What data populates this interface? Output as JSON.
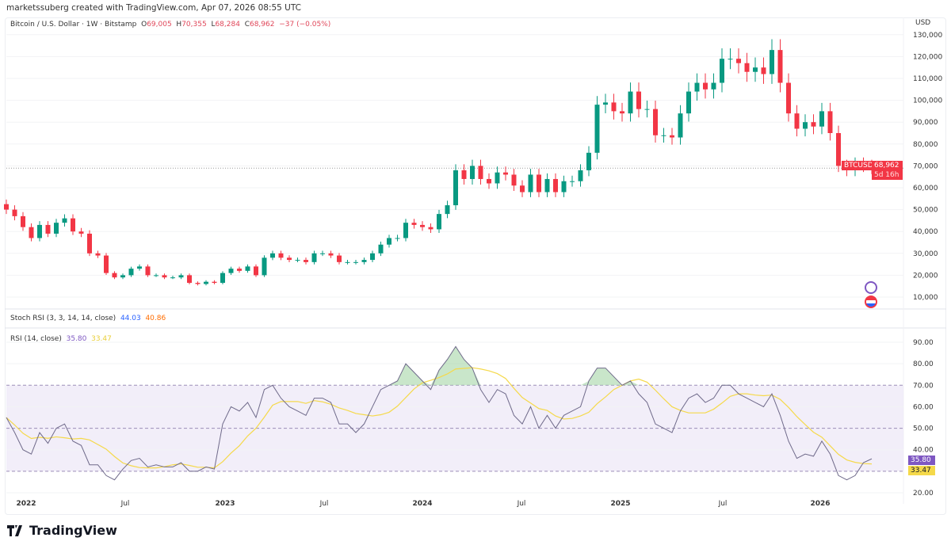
{
  "creator": "marketssuberg created with TradingView.com, Apr 07, 2026 08:55 UTC",
  "legend": {
    "symbol": "Bitcoin / U.S. Dollar · 1W · Bitstamp",
    "o_label": "O",
    "o": "69,005",
    "h_label": "H",
    "h": "70,355",
    "l_label": "L",
    "l": "68,284",
    "c_label": "C",
    "c": "68,962",
    "change": "−37 (−0.05%)"
  },
  "currency": "USD",
  "price_axis": [
    "130,000",
    "120,000",
    "110,000",
    "100,000",
    "90,000",
    "80,000",
    "70,000",
    "60,000",
    "50,000",
    "40,000",
    "30,000",
    "20,000",
    "10,000"
  ],
  "last_price": {
    "symbol": "BTCUSD",
    "value": "68,962",
    "countdown": "5d 16h"
  },
  "stoch_rsi": {
    "label": "Stoch RSI (3, 3, 14, 14, close)",
    "k": "44.03",
    "d": "40.86"
  },
  "rsi": {
    "label": "RSI (14, close)",
    "value": "35.80",
    "ma": "33.47",
    "axis": [
      "90.00",
      "80.00",
      "70.00",
      "60.00",
      "50.00",
      "40.00",
      "20.00"
    ]
  },
  "time_axis": [
    "2022",
    "Jul",
    "2023",
    "Jul",
    "2024",
    "Jul",
    "2025",
    "Jul",
    "2026"
  ],
  "brand": "TradingView",
  "colors": {
    "up": "#089981",
    "down": "#f23645",
    "rsi": "#7e57c2",
    "rsi_ma": "#f5d94a",
    "band": "#ede7f6"
  },
  "chart_data": {
    "type": "candlestick",
    "interval": "1W",
    "close_k": [
      50,
      47,
      42,
      37,
      43,
      39,
      44,
      46,
      40,
      39,
      30,
      29,
      21,
      19,
      20,
      23,
      24,
      20,
      20,
      19,
      19,
      20,
      16.5,
      16,
      17,
      16.5,
      21,
      23,
      22,
      24,
      20,
      28,
      30,
      28,
      27,
      27,
      26,
      30,
      30,
      29,
      26,
      26,
      26,
      27,
      30,
      34,
      37,
      37,
      44,
      43,
      42,
      41,
      48,
      52,
      68,
      64,
      70,
      64,
      62,
      67,
      66,
      61,
      58,
      66,
      58,
      64,
      58,
      63,
      63,
      68,
      76,
      98,
      99,
      95,
      94,
      104,
      96,
      96,
      84,
      84,
      83,
      94,
      104,
      108,
      105,
      108,
      119,
      119,
      117,
      113,
      115,
      112,
      123,
      108,
      94,
      87,
      90,
      88,
      95,
      85,
      70,
      68,
      71,
      70,
      69
    ],
    "rsi": [
      55,
      48,
      40,
      38,
      48,
      43,
      50,
      52,
      44,
      42,
      33,
      33,
      28,
      26,
      31,
      35,
      36,
      32,
      33,
      32,
      32,
      34,
      30,
      30,
      32,
      31,
      52,
      60,
      58,
      62,
      55,
      68,
      70,
      64,
      60,
      58,
      56,
      64,
      64,
      62,
      52,
      52,
      48,
      52,
      60,
      68,
      70,
      72,
      80,
      76,
      72,
      68,
      77,
      82,
      88,
      82,
      78,
      68,
      62,
      68,
      66,
      56,
      52,
      60,
      50,
      56,
      50,
      56,
      58,
      60,
      72,
      78,
      78,
      74,
      70,
      72,
      66,
      62,
      52,
      50,
      48,
      58,
      64,
      66,
      62,
      64,
      70,
      70,
      66,
      64,
      62,
      60,
      66,
      56,
      44,
      36,
      38,
      37,
      44,
      38,
      28,
      26,
      28,
      34,
      35.8
    ],
    "y_range_k": [
      10,
      130
    ],
    "rsi_range": [
      20,
      90
    ],
    "rsi_levels": [
      70,
      50,
      30
    ]
  }
}
